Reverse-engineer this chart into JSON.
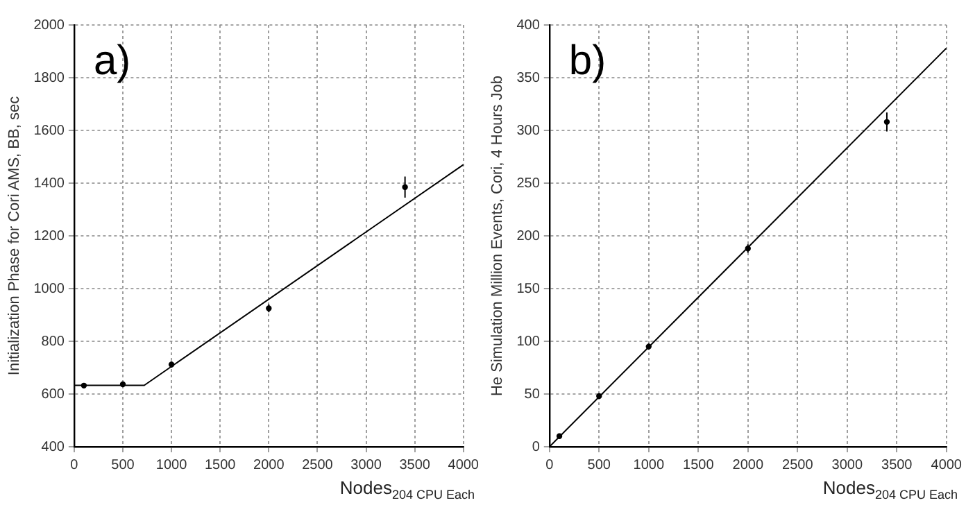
{
  "chart_data": [
    {
      "type": "scatter",
      "xlabel": "Nodes$_{204 CPU Each}$",
      "ylabel": "Initialization Phase for Cori AMS, BB, sec",
      "annotations": [
        "a)"
      ],
      "xlim": [
        0,
        4000
      ],
      "xticks": [
        0,
        500,
        1000,
        1500,
        2000,
        2500,
        3000,
        3500,
        4000
      ],
      "ylim": [
        400,
        2000
      ],
      "yticks": [
        400,
        600,
        800,
        1000,
        1200,
        1400,
        1600,
        1800,
        2000
      ],
      "grid": true,
      "series": [
        {
          "color": "#000000",
          "marker": "circle",
          "x": [
            100,
            500,
            1000,
            2000,
            3400
          ],
          "values": [
            632,
            637,
            712,
            925,
            1385
          ],
          "errors": [
            10,
            10,
            12,
            15,
            40
          ]
        },
        {
          "type": "line",
          "marker": "none",
          "color": "#000000",
          "x": [
            0,
            720,
            4000
          ],
          "values": [
            633,
            633,
            1470
          ]
        }
      ]
    },
    {
      "type": "scatter",
      "xlabel": "Nodes$_{204 CPU Each}$",
      "ylabel": "He Simulation Million Events, Cori, 4 Hours Job",
      "annotations": [
        "b)"
      ],
      "xlim": [
        0,
        4000
      ],
      "xticks": [
        0,
        500,
        1000,
        1500,
        2000,
        2500,
        3000,
        3500,
        4000
      ],
      "ylim": [
        0,
        400
      ],
      "yticks": [
        0,
        50,
        100,
        150,
        200,
        250,
        300,
        350,
        400
      ],
      "grid": true,
      "series": [
        {
          "color": "#000000",
          "marker": "circle",
          "x": [
            100,
            500,
            1000,
            2000,
            3400
          ],
          "values": [
            10,
            48,
            95,
            188,
            308
          ],
          "errors": [
            2,
            2,
            3,
            4,
            9
          ]
        },
        {
          "type": "line",
          "marker": "none",
          "color": "#000000",
          "x": [
            0,
            4000
          ],
          "values": [
            0,
            378
          ]
        }
      ]
    }
  ]
}
